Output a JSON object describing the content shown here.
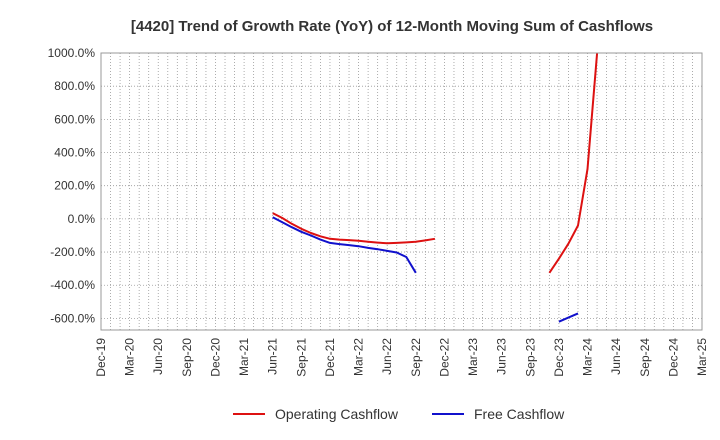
{
  "chart_data": {
    "type": "line",
    "title": "[4420]  Trend of Growth Rate (YoY) of 12-Month Moving Sum of Cashflows",
    "xlabel": "",
    "ylabel": "",
    "ylim": [
      -670,
      1000
    ],
    "yticks": [
      1000,
      800,
      600,
      400,
      200,
      0,
      -200,
      -400,
      -600
    ],
    "ytick_labels": [
      "1000.0%",
      "800.0%",
      "600.0%",
      "400.0%",
      "200.0%",
      "0.0%",
      "-200.0%",
      "-400.0%",
      "-600.0%"
    ],
    "xticks": [
      "Dec-19",
      "Mar-20",
      "Jun-20",
      "Sep-20",
      "Dec-20",
      "Mar-21",
      "Jun-21",
      "Sep-21",
      "Dec-21",
      "Mar-22",
      "Jun-22",
      "Sep-22",
      "Dec-22",
      "Mar-23",
      "Jun-23",
      "Sep-23",
      "Dec-23",
      "Mar-24",
      "Jun-24",
      "Sep-24",
      "Dec-24",
      "Mar-25"
    ],
    "grid": true,
    "legend_position": "bottom",
    "series": [
      {
        "name": "Operating Cashflow",
        "color": "#dd1111",
        "segments": [
          [
            {
              "x": "Jun-21",
              "y": 35
            },
            {
              "x": "Jul-21",
              "y": 5
            },
            {
              "x": "Aug-21",
              "y": -30
            },
            {
              "x": "Sep-21",
              "y": -60
            },
            {
              "x": "Oct-21",
              "y": -85
            },
            {
              "x": "Nov-21",
              "y": -105
            },
            {
              "x": "Dec-21",
              "y": -120
            },
            {
              "x": "Jan-22",
              "y": -125
            },
            {
              "x": "Feb-22",
              "y": -128
            },
            {
              "x": "Mar-22",
              "y": -132
            },
            {
              "x": "Apr-22",
              "y": -138
            },
            {
              "x": "May-22",
              "y": -143
            },
            {
              "x": "Jun-22",
              "y": -147
            },
            {
              "x": "Jul-22",
              "y": -145
            },
            {
              "x": "Aug-22",
              "y": -142
            },
            {
              "x": "Sep-22",
              "y": -138
            },
            {
              "x": "Oct-22",
              "y": -130
            },
            {
              "x": "Nov-22",
              "y": -120
            }
          ],
          [
            {
              "x": "Nov-23",
              "y": -325
            },
            {
              "x": "Dec-23",
              "y": -240
            },
            {
              "x": "Jan-24",
              "y": -150
            },
            {
              "x": "Feb-24",
              "y": -40
            },
            {
              "x": "Mar-24",
              "y": 300
            },
            {
              "x": "Apr-24",
              "y": 1000
            }
          ]
        ]
      },
      {
        "name": "Free Cashflow",
        "color": "#1111cc",
        "segments": [
          [
            {
              "x": "Jun-21",
              "y": 10
            },
            {
              "x": "Jul-21",
              "y": -20
            },
            {
              "x": "Aug-21",
              "y": -50
            },
            {
              "x": "Sep-21",
              "y": -78
            },
            {
              "x": "Oct-21",
              "y": -100
            },
            {
              "x": "Nov-21",
              "y": -125
            },
            {
              "x": "Dec-21",
              "y": -145
            },
            {
              "x": "Jan-22",
              "y": -152
            },
            {
              "x": "Feb-22",
              "y": -158
            },
            {
              "x": "Mar-22",
              "y": -165
            },
            {
              "x": "Apr-22",
              "y": -175
            },
            {
              "x": "May-22",
              "y": -183
            },
            {
              "x": "Jun-22",
              "y": -193
            },
            {
              "x": "Jul-22",
              "y": -203
            },
            {
              "x": "Aug-22",
              "y": -230
            },
            {
              "x": "Sep-22",
              "y": -325
            }
          ],
          [
            {
              "x": "Dec-23",
              "y": -620
            },
            {
              "x": "Jan-24",
              "y": -595
            },
            {
              "x": "Feb-24",
              "y": -570
            }
          ]
        ]
      }
    ]
  }
}
